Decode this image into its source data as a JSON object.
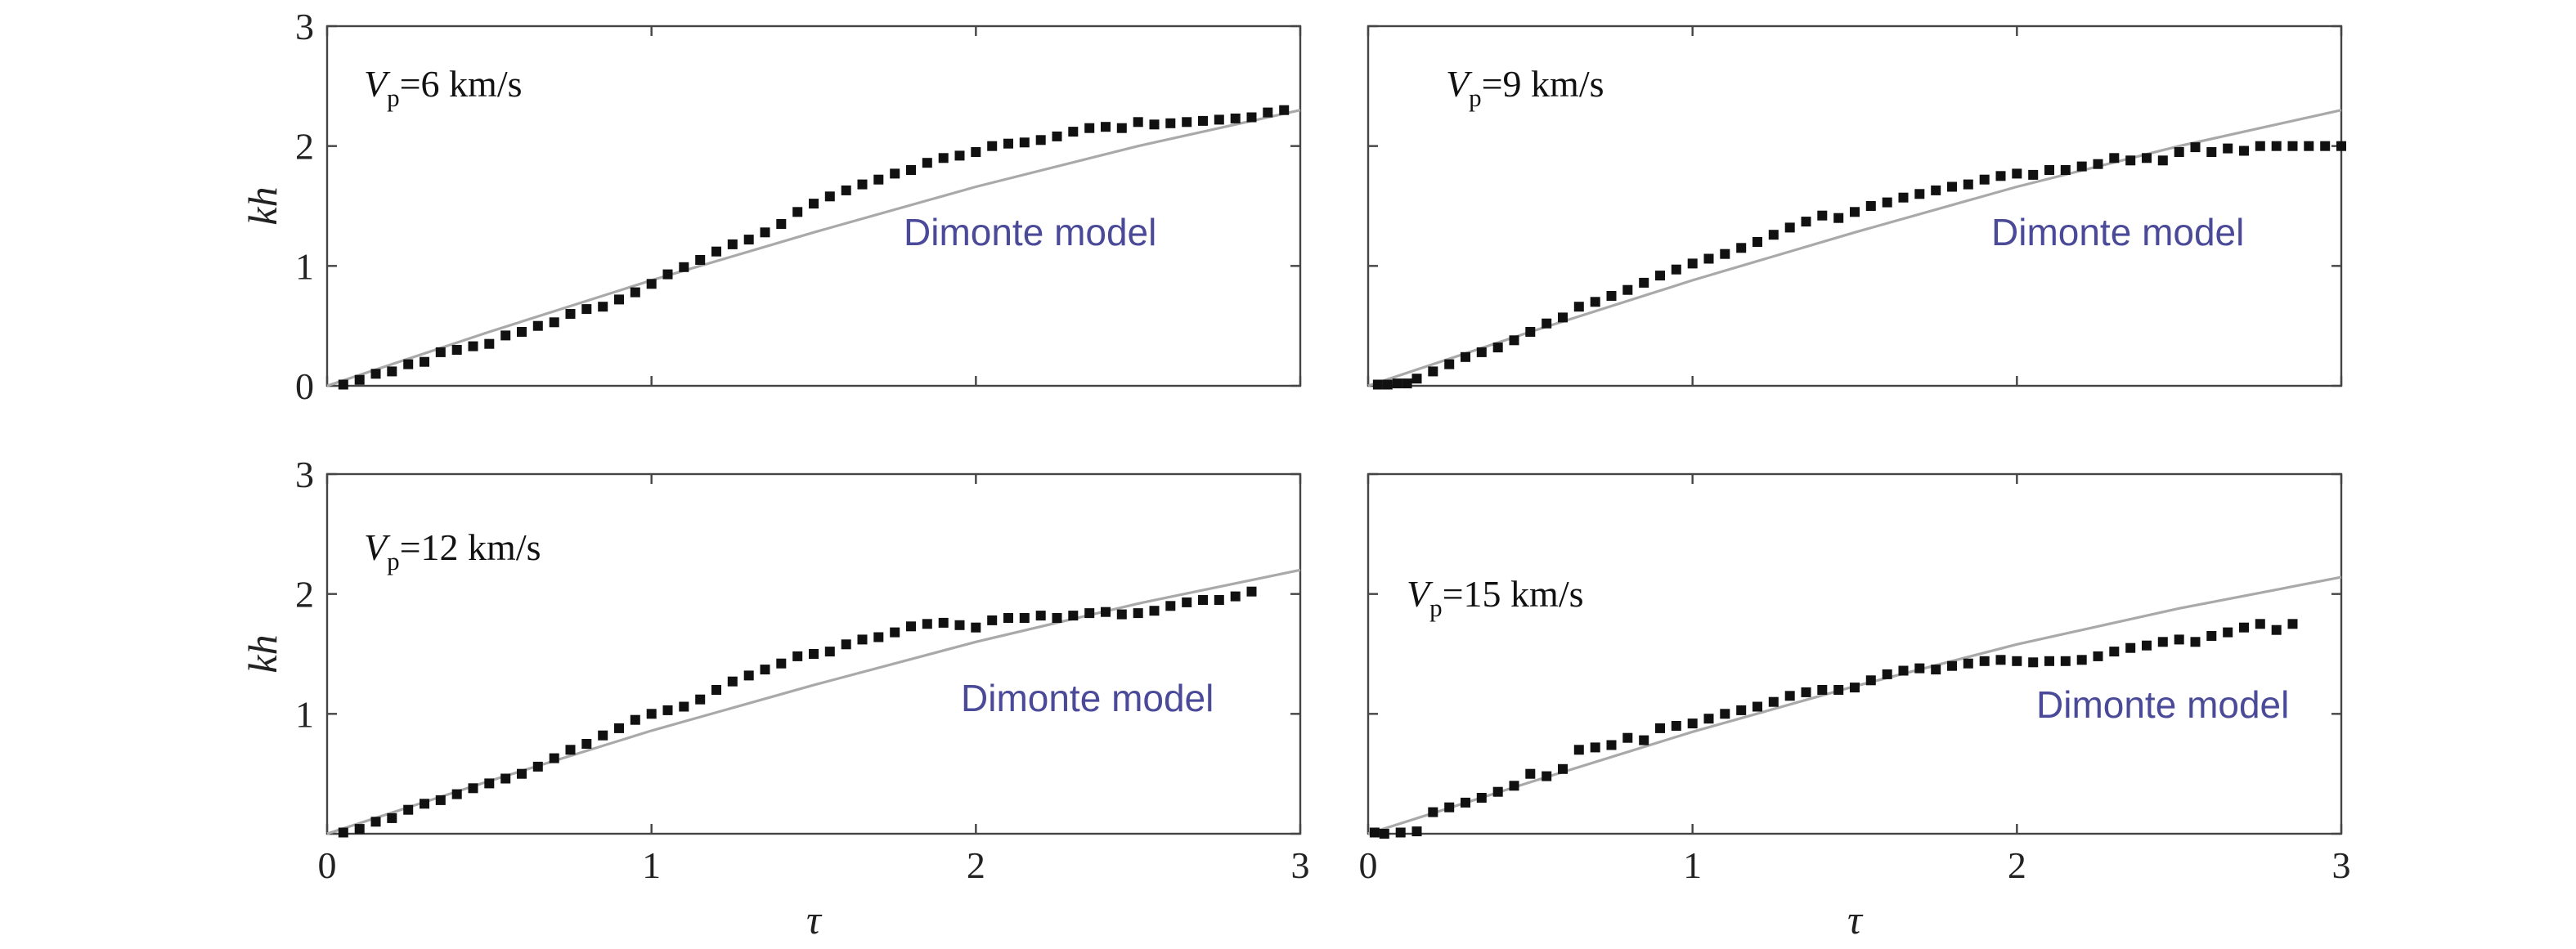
{
  "chart_data": [
    {
      "type": "scatter",
      "panel_label": {
        "var": "V",
        "sub": "p",
        "text": "=6 km/s"
      },
      "model_label": "Dimonte model",
      "ylabel": "kh",
      "xlabel": "",
      "xlim": [
        0,
        3
      ],
      "ylim": [
        0,
        3
      ],
      "x_ticks": [],
      "y_ticks": [
        "0",
        "1",
        "2",
        "3"
      ],
      "model_line": {
        "x": [
          0,
          0.5,
          1,
          1.5,
          2,
          2.5,
          3
        ],
        "y": [
          0,
          0.45,
          0.88,
          1.28,
          1.66,
          2.0,
          2.3
        ]
      },
      "series": [
        {
          "x": [
            0.05,
            0.1,
            0.15,
            0.2,
            0.25,
            0.3,
            0.35,
            0.4,
            0.45,
            0.5,
            0.55,
            0.6,
            0.65,
            0.7,
            0.75,
            0.8,
            0.85,
            0.9,
            0.95,
            1.0,
            1.05,
            1.1,
            1.15,
            1.2,
            1.25,
            1.3,
            1.35,
            1.4,
            1.45,
            1.5,
            1.55,
            1.6,
            1.65,
            1.7,
            1.75,
            1.8,
            1.85,
            1.9,
            1.95,
            2.0,
            2.05,
            2.1,
            2.15,
            2.2,
            2.25,
            2.3,
            2.35,
            2.4,
            2.45,
            2.5,
            2.55,
            2.6,
            2.65,
            2.7,
            2.75,
            2.8,
            2.85,
            2.9,
            2.95
          ],
          "y": [
            0.01,
            0.05,
            0.1,
            0.12,
            0.18,
            0.2,
            0.28,
            0.3,
            0.33,
            0.35,
            0.42,
            0.45,
            0.5,
            0.53,
            0.6,
            0.64,
            0.66,
            0.72,
            0.78,
            0.85,
            0.93,
            0.99,
            1.05,
            1.12,
            1.18,
            1.22,
            1.28,
            1.35,
            1.45,
            1.52,
            1.58,
            1.63,
            1.68,
            1.72,
            1.77,
            1.8,
            1.86,
            1.9,
            1.92,
            1.95,
            2.0,
            2.02,
            2.03,
            2.05,
            2.08,
            2.12,
            2.15,
            2.16,
            2.15,
            2.2,
            2.18,
            2.19,
            2.2,
            2.21,
            2.22,
            2.23,
            2.24,
            2.28,
            2.3
          ]
        }
      ]
    },
    {
      "type": "scatter",
      "panel_label": {
        "var": "V",
        "sub": "p",
        "text": "=9 km/s"
      },
      "model_label": "Dimonte model",
      "ylabel": "",
      "xlabel": "",
      "xlim": [
        0,
        3
      ],
      "ylim": [
        0,
        3
      ],
      "x_ticks": [],
      "y_ticks": [],
      "model_line": {
        "x": [
          0,
          0.5,
          1,
          1.5,
          2,
          2.5,
          3
        ],
        "y": [
          0,
          0.45,
          0.88,
          1.28,
          1.66,
          2.0,
          2.3
        ]
      },
      "series": [
        {
          "x": [
            0.03,
            0.06,
            0.09,
            0.12,
            0.15,
            0.2,
            0.25,
            0.3,
            0.35,
            0.4,
            0.45,
            0.5,
            0.55,
            0.6,
            0.65,
            0.7,
            0.75,
            0.8,
            0.85,
            0.9,
            0.95,
            1.0,
            1.05,
            1.1,
            1.15,
            1.2,
            1.25,
            1.3,
            1.35,
            1.4,
            1.45,
            1.5,
            1.55,
            1.6,
            1.65,
            1.7,
            1.75,
            1.8,
            1.85,
            1.9,
            1.95,
            2.0,
            2.05,
            2.1,
            2.15,
            2.2,
            2.25,
            2.3,
            2.35,
            2.4,
            2.45,
            2.5,
            2.55,
            2.6,
            2.65,
            2.7,
            2.75,
            2.8,
            2.85,
            2.9,
            2.95,
            3.0
          ],
          "y": [
            0.01,
            0.01,
            0.02,
            0.02,
            0.06,
            0.12,
            0.18,
            0.24,
            0.28,
            0.32,
            0.38,
            0.45,
            0.52,
            0.57,
            0.66,
            0.7,
            0.75,
            0.8,
            0.86,
            0.92,
            0.97,
            1.02,
            1.06,
            1.1,
            1.15,
            1.2,
            1.26,
            1.32,
            1.37,
            1.42,
            1.4,
            1.45,
            1.5,
            1.53,
            1.57,
            1.6,
            1.63,
            1.66,
            1.68,
            1.72,
            1.75,
            1.77,
            1.76,
            1.8,
            1.8,
            1.83,
            1.85,
            1.9,
            1.88,
            1.9,
            1.88,
            1.95,
            1.99,
            1.95,
            1.98,
            1.96,
            2.0,
            2.0,
            2.0,
            2.0,
            2.0,
            2.0
          ]
        }
      ]
    },
    {
      "type": "scatter",
      "panel_label": {
        "var": "V",
        "sub": "p",
        "text": "=12 km/s"
      },
      "model_label": "Dimonte model",
      "ylabel": "kh",
      "xlabel": "τ",
      "xlim": [
        0,
        3
      ],
      "ylim": [
        0,
        3
      ],
      "x_ticks": [
        "0",
        "1",
        "2",
        "3"
      ],
      "y_ticks": [
        "1",
        "2",
        "3"
      ],
      "model_line": {
        "x": [
          0,
          0.5,
          1,
          1.5,
          2,
          2.5,
          3
        ],
        "y": [
          0,
          0.44,
          0.86,
          1.24,
          1.6,
          1.92,
          2.2
        ]
      },
      "series": [
        {
          "x": [
            0.05,
            0.1,
            0.15,
            0.2,
            0.25,
            0.3,
            0.35,
            0.4,
            0.45,
            0.5,
            0.55,
            0.6,
            0.65,
            0.7,
            0.75,
            0.8,
            0.85,
            0.9,
            0.95,
            1.0,
            1.05,
            1.1,
            1.15,
            1.2,
            1.25,
            1.3,
            1.35,
            1.4,
            1.45,
            1.5,
            1.55,
            1.6,
            1.65,
            1.7,
            1.75,
            1.8,
            1.85,
            1.9,
            1.95,
            2.0,
            2.05,
            2.1,
            2.15,
            2.2,
            2.25,
            2.3,
            2.35,
            2.4,
            2.45,
            2.5,
            2.55,
            2.6,
            2.65,
            2.7,
            2.75,
            2.8,
            2.85
          ],
          "y": [
            0.01,
            0.04,
            0.1,
            0.13,
            0.2,
            0.25,
            0.28,
            0.33,
            0.38,
            0.42,
            0.46,
            0.5,
            0.56,
            0.63,
            0.7,
            0.75,
            0.82,
            0.88,
            0.95,
            1.0,
            1.03,
            1.06,
            1.12,
            1.2,
            1.27,
            1.32,
            1.37,
            1.42,
            1.48,
            1.5,
            1.52,
            1.58,
            1.62,
            1.64,
            1.68,
            1.73,
            1.75,
            1.76,
            1.74,
            1.72,
            1.78,
            1.8,
            1.8,
            1.82,
            1.8,
            1.82,
            1.84,
            1.85,
            1.83,
            1.84,
            1.86,
            1.9,
            1.93,
            1.95,
            1.95,
            1.98,
            2.02
          ]
        }
      ]
    },
    {
      "type": "scatter",
      "panel_label": {
        "var": "V",
        "sub": "p",
        "text": "=15 km/s"
      },
      "model_label": "Dimonte model",
      "ylabel": "",
      "xlabel": "τ",
      "xlim": [
        0,
        3
      ],
      "ylim": [
        0,
        3
      ],
      "x_ticks": [
        "0",
        "1",
        "2",
        "3"
      ],
      "y_ticks": [],
      "model_line": {
        "x": [
          0,
          0.5,
          1,
          1.5,
          2,
          2.5,
          3
        ],
        "y": [
          0,
          0.43,
          0.85,
          1.23,
          1.58,
          1.88,
          2.14
        ]
      },
      "series": [
        {
          "x": [
            0.02,
            0.05,
            0.1,
            0.15,
            0.2,
            0.25,
            0.3,
            0.35,
            0.4,
            0.45,
            0.5,
            0.55,
            0.6,
            0.65,
            0.7,
            0.75,
            0.8,
            0.85,
            0.9,
            0.95,
            1.0,
            1.05,
            1.1,
            1.15,
            1.2,
            1.25,
            1.3,
            1.35,
            1.4,
            1.45,
            1.5,
            1.55,
            1.6,
            1.65,
            1.7,
            1.75,
            1.8,
            1.85,
            1.9,
            1.95,
            2.0,
            2.05,
            2.1,
            2.15,
            2.2,
            2.25,
            2.3,
            2.35,
            2.4,
            2.45,
            2.5,
            2.55,
            2.6,
            2.65,
            2.7,
            2.75,
            2.8,
            2.85
          ],
          "y": [
            0.01,
            0.0,
            0.01,
            0.02,
            0.18,
            0.22,
            0.26,
            0.3,
            0.35,
            0.4,
            0.5,
            0.48,
            0.54,
            0.7,
            0.72,
            0.74,
            0.8,
            0.78,
            0.88,
            0.9,
            0.92,
            0.96,
            1.0,
            1.03,
            1.06,
            1.1,
            1.15,
            1.18,
            1.2,
            1.2,
            1.22,
            1.28,
            1.33,
            1.36,
            1.38,
            1.37,
            1.4,
            1.42,
            1.44,
            1.45,
            1.44,
            1.43,
            1.44,
            1.44,
            1.45,
            1.48,
            1.52,
            1.55,
            1.57,
            1.6,
            1.62,
            1.6,
            1.65,
            1.68,
            1.72,
            1.75,
            1.7,
            1.75
          ]
        }
      ]
    }
  ]
}
